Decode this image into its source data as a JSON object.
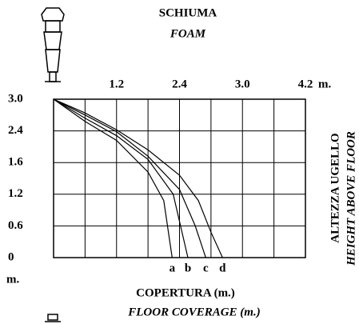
{
  "chart_data": {
    "type": "line",
    "title": "SCHIUMA",
    "subtitle": "FOAM",
    "x_unit": "m.",
    "y_unit": "m.",
    "xlabel": "COPERTURA (m.)",
    "xlabel_en": "FLOOR COVERAGE (m.)",
    "ylabel": "ALTEZZA UGELLO",
    "ylabel_en": "HEIGHT ABOVE FLOOR",
    "xlim": [
      0,
      4.2
    ],
    "xticks": [
      1.2,
      2.4,
      {
        "value": 3,
        "label": "3.0"
      },
      4.2
    ],
    "ylim": [
      0,
      3
    ],
    "yticks": [
      0,
      0.6,
      1.2,
      1.6,
      2.4,
      {
        "value": 3,
        "label": "3.0"
      }
    ],
    "grid": true,
    "series": [
      {
        "name": "a",
        "color": "#000000",
        "x": [
          0,
          0.6,
          1.2,
          1.8,
          2.1,
          2.26
        ],
        "values": [
          3,
          2.58,
          2.16,
          1.48,
          1.08,
          0
        ]
      },
      {
        "name": "b",
        "color": "#000000",
        "x": [
          0,
          0.6,
          1.2,
          1.8,
          2.28,
          2.48
        ],
        "values": [
          3,
          2.64,
          2.28,
          1.68,
          1.2,
          0
        ]
      },
      {
        "name": "c",
        "color": "#000000",
        "x": [
          0,
          0.6,
          1.2,
          1.8,
          2.4,
          2.55,
          2.65
        ],
        "values": [
          3,
          2.7,
          2.38,
          1.76,
          1.26,
          0.6,
          0
        ]
      },
      {
        "name": "d",
        "color": "#000000",
        "x": [
          0,
          0.6,
          1.2,
          1.8,
          2.4,
          2.58,
          2.7,
          2.81
        ],
        "values": [
          3,
          2.74,
          2.42,
          1.92,
          1.44,
          1.08,
          0.48,
          0
        ]
      }
    ]
  }
}
